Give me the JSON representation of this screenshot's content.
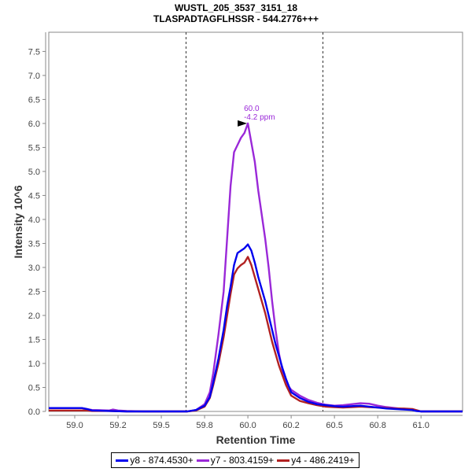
{
  "chart_data": {
    "type": "line",
    "title": "WUSTL_205_3537_3151_18",
    "subtitle": "TLASPADTAGFLHSSR - 544.2776+++",
    "xlabel": "Retention Time",
    "ylabel": "Intensity 10^6",
    "xlim": [
      58.85,
      61.24
    ],
    "ylim": [
      0,
      7.9
    ],
    "x_ticks": [
      59.0,
      59.25,
      59.5,
      59.75,
      60.0,
      60.25,
      60.5,
      60.75,
      61.0
    ],
    "x_tick_labels": [
      "59.0",
      "59.2",
      "59.5",
      "59.8",
      "60.0",
      "60.2",
      "60.5",
      "60.8",
      "61.0"
    ],
    "y_ticks": [
      0,
      0.5,
      1,
      1.5,
      2,
      2.5,
      3,
      3.5,
      4,
      4.5,
      5,
      5.5,
      6,
      6.5,
      7,
      7.5
    ],
    "y_tick_labels": [
      "0.0",
      "0.5",
      "1.0",
      "1.5",
      "2.0",
      "2.5",
      "3.0",
      "3.5",
      "4.0",
      "4.5",
      "5.0",
      "5.5",
      "6.0",
      "6.5",
      "7.0",
      "7.5"
    ],
    "grid": false,
    "legend_position": "bottom",
    "boundaries": [
      59.64,
      60.43
    ],
    "annotation": {
      "x": 60.0,
      "y": 6.0,
      "line1": "60.0",
      "line2": "-4.2 ppm",
      "color": "#9a28d8"
    },
    "series": [
      {
        "name": "y8 - 874.4530+",
        "color": "#0000ee",
        "x": [
          58.85,
          59.04,
          59.07,
          59.1,
          59.2,
          59.3,
          59.4,
          59.5,
          59.6,
          59.65,
          59.7,
          59.75,
          59.78,
          59.8,
          59.83,
          59.86,
          59.88,
          59.9,
          59.92,
          59.94,
          59.96,
          59.98,
          60.0,
          60.02,
          60.04,
          60.06,
          60.08,
          60.1,
          60.12,
          60.14,
          60.16,
          60.18,
          60.2,
          60.22,
          60.25,
          60.3,
          60.35,
          60.4,
          60.45,
          60.5,
          60.55,
          60.6,
          60.65,
          60.7,
          60.75,
          60.8,
          60.85,
          60.9,
          60.95,
          60.97,
          61.0,
          61.24
        ],
        "values": [
          0.07,
          0.07,
          0.05,
          0.02,
          0.01,
          0.0,
          0.0,
          0.0,
          0.0,
          0.0,
          0.03,
          0.12,
          0.3,
          0.6,
          1.1,
          1.7,
          2.2,
          2.6,
          3.05,
          3.3,
          3.35,
          3.4,
          3.48,
          3.35,
          3.1,
          2.8,
          2.55,
          2.3,
          2.0,
          1.7,
          1.4,
          1.15,
          0.9,
          0.68,
          0.4,
          0.28,
          0.2,
          0.15,
          0.13,
          0.11,
          0.1,
          0.11,
          0.12,
          0.1,
          0.08,
          0.06,
          0.05,
          0.04,
          0.03,
          0.01,
          0.0,
          0.0
        ]
      },
      {
        "name": "y7 - 803.4159+",
        "color": "#9a28d8",
        "x": [
          58.85,
          59.04,
          59.07,
          59.1,
          59.2,
          59.22,
          59.25,
          59.3,
          59.4,
          59.5,
          59.6,
          59.65,
          59.7,
          59.75,
          59.78,
          59.8,
          59.83,
          59.86,
          59.88,
          59.9,
          59.92,
          59.94,
          59.96,
          59.98,
          60.0,
          60.02,
          60.04,
          60.06,
          60.08,
          60.1,
          60.12,
          60.14,
          60.16,
          60.18,
          60.2,
          60.22,
          60.25,
          60.3,
          60.35,
          60.4,
          60.45,
          60.5,
          60.55,
          60.6,
          60.65,
          60.7,
          60.75,
          60.8,
          60.85,
          60.9,
          60.95,
          60.97,
          61.0,
          61.24
        ],
        "values": [
          0.07,
          0.07,
          0.05,
          0.03,
          0.02,
          0.04,
          0.02,
          0.01,
          0.0,
          0.0,
          0.0,
          0.0,
          0.03,
          0.15,
          0.4,
          0.8,
          1.6,
          2.5,
          3.6,
          4.7,
          5.4,
          5.55,
          5.7,
          5.8,
          6.0,
          5.6,
          5.2,
          4.6,
          4.1,
          3.6,
          3.0,
          2.3,
          1.7,
          1.2,
          0.85,
          0.6,
          0.45,
          0.33,
          0.24,
          0.18,
          0.14,
          0.12,
          0.13,
          0.15,
          0.17,
          0.16,
          0.12,
          0.09,
          0.07,
          0.05,
          0.04,
          0.02,
          0.0,
          0.0
        ]
      },
      {
        "name": "y4 - 486.2419+",
        "color": "#b22222",
        "x": [
          58.85,
          59.04,
          59.07,
          59.1,
          59.2,
          59.3,
          59.4,
          59.5,
          59.6,
          59.65,
          59.7,
          59.75,
          59.78,
          59.8,
          59.83,
          59.86,
          59.88,
          59.9,
          59.92,
          59.94,
          59.96,
          59.98,
          60.0,
          60.02,
          60.04,
          60.06,
          60.08,
          60.1,
          60.12,
          60.14,
          60.16,
          60.18,
          60.2,
          60.22,
          60.25,
          60.3,
          60.35,
          60.4,
          60.45,
          60.5,
          60.55,
          60.6,
          60.65,
          60.7,
          60.75,
          60.8,
          60.85,
          60.9,
          60.95,
          60.97,
          61.0,
          61.24
        ],
        "values": [
          0.02,
          0.02,
          0.02,
          0.01,
          0.01,
          0.0,
          0.0,
          0.0,
          0.0,
          0.0,
          0.02,
          0.1,
          0.28,
          0.55,
          1.0,
          1.55,
          2.0,
          2.45,
          2.85,
          2.98,
          3.05,
          3.1,
          3.22,
          3.05,
          2.8,
          2.55,
          2.3,
          2.05,
          1.75,
          1.45,
          1.2,
          0.95,
          0.75,
          0.55,
          0.33,
          0.22,
          0.17,
          0.13,
          0.1,
          0.09,
          0.08,
          0.09,
          0.1,
          0.09,
          0.08,
          0.07,
          0.06,
          0.06,
          0.05,
          0.03,
          0.0,
          0.0
        ]
      }
    ]
  }
}
